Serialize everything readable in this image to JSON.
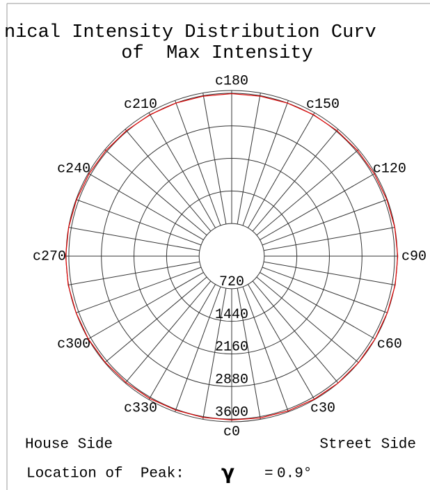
{
  "chart_data": {
    "type": "polar",
    "title": [
      "nical Intensity Distribution Curv",
      "of  Max Intensity"
    ],
    "angle_ticks": [
      {
        "value": 0,
        "label": "c0"
      },
      {
        "value": 30,
        "label": "c30"
      },
      {
        "value": 60,
        "label": "c60"
      },
      {
        "value": 90,
        "label": "c90"
      },
      {
        "value": 120,
        "label": "c120"
      },
      {
        "value": 150,
        "label": "c150"
      },
      {
        "value": 180,
        "label": "c180"
      },
      {
        "value": 210,
        "label": "c210"
      },
      {
        "value": 240,
        "label": "c240"
      },
      {
        "value": 270,
        "label": "c270"
      },
      {
        "value": 300,
        "label": "c300"
      },
      {
        "value": 330,
        "label": "c330"
      }
    ],
    "rlim": [
      0,
      3660
    ],
    "rticks": [
      720,
      1440,
      2160,
      2880,
      3600
    ],
    "spoke_step": 10,
    "series": [
      {
        "color": "#e00000",
        "x": [
          0,
          10,
          20,
          30,
          40,
          50,
          60,
          70,
          80,
          90,
          100,
          110,
          120,
          130,
          140,
          150,
          160,
          170,
          180,
          190,
          200,
          210,
          220,
          230,
          240,
          250,
          260,
          270,
          280,
          290,
          300,
          310,
          320,
          330,
          340,
          350
        ],
        "values": [
          3620,
          3630,
          3640,
          3650,
          3660,
          3660,
          3660,
          3660,
          3670,
          3670,
          3660,
          3650,
          3640,
          3630,
          3620,
          3610,
          3600,
          3590,
          3590,
          3590,
          3600,
          3610,
          3620,
          3630,
          3640,
          3650,
          3660,
          3670,
          3670,
          3660,
          3660,
          3650,
          3640,
          3630,
          3620,
          3620
        ]
      }
    ],
    "left_label": "House Side",
    "right_label": "Street Side",
    "peak_label": "Location of  Peak:",
    "peak_symbol": "γ",
    "peak_eq": "=",
    "peak_value": "0.9°",
    "peak_color": "#e00000"
  }
}
